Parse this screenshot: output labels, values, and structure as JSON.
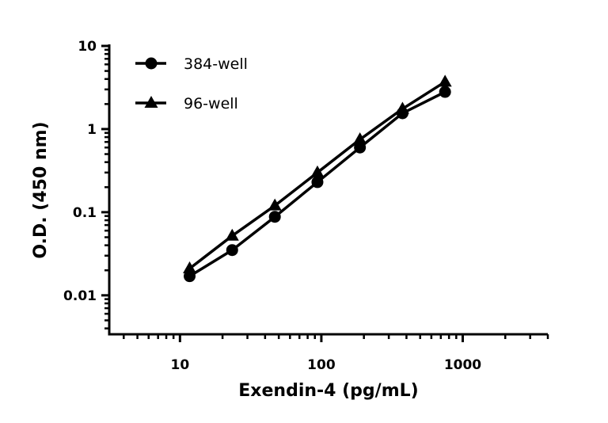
{
  "chart_data": {
    "type": "line",
    "title": "",
    "xlabel": "Exendin-4 (pg/mL)",
    "ylabel": "O.D. (450 nm)",
    "xscale": "log",
    "yscale": "log",
    "xlim": [
      3.16,
      4000
    ],
    "ylim": [
      0.0034,
      10
    ],
    "xticks": [
      10,
      100,
      1000
    ],
    "xtick_labels": [
      "10",
      "100",
      "1000"
    ],
    "yticks": [
      10,
      1,
      0.1,
      0.01
    ],
    "ytick_labels": [
      "10",
      "1",
      "0.1",
      "0.01"
    ],
    "grid": false,
    "legend_position": "top-left",
    "x": [
      11.7,
      23.4,
      46.9,
      93.8,
      187.5,
      375,
      750
    ],
    "series": [
      {
        "name": "384-well",
        "marker": "circle",
        "color": "#000000",
        "values": [
          0.017,
          0.035,
          0.088,
          0.23,
          0.6,
          1.55,
          2.8
        ]
      },
      {
        "name": "96-well",
        "marker": "triangle",
        "color": "#000000",
        "values": [
          0.021,
          0.052,
          0.12,
          0.3,
          0.75,
          1.75,
          3.7
        ]
      }
    ]
  }
}
